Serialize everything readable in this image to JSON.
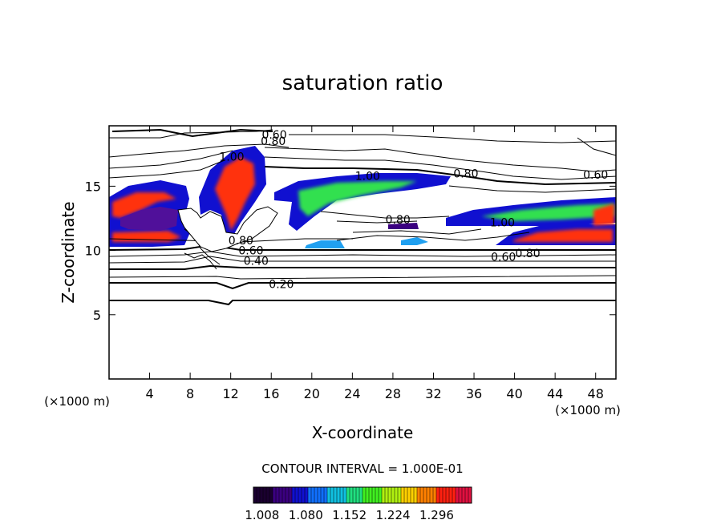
{
  "chart_data": {
    "type": "contour",
    "title": "saturation ratio",
    "xlabel": "X-coordinate",
    "ylabel": "Z-coordinate",
    "x_unit": "(×1000 m)",
    "z_unit": "(×1000 m)",
    "xlim": [
      0,
      50
    ],
    "ylim": [
      0,
      19.7
    ],
    "x_ticks": [
      4,
      8,
      12,
      16,
      20,
      24,
      28,
      32,
      36,
      40,
      44,
      48
    ],
    "y_ticks": [
      5,
      10,
      15
    ],
    "contour_interval_text": "CONTOUR INTERVAL = 1.000E-01",
    "colorbar_ticks": [
      "1.008",
      "1.080",
      "1.152",
      "1.224",
      "1.296"
    ],
    "colormap": [
      "#1a0030",
      "#3b0080",
      "#1010d0",
      "#1070ff",
      "#10c0e0",
      "#20e080",
      "#40f020",
      "#b0f010",
      "#ffd000",
      "#ff8000",
      "#ff2010",
      "#e01040"
    ],
    "contour_labels": [
      {
        "text": "0.60",
        "x": 16.3,
        "z": 19.0
      },
      {
        "text": "0.80",
        "x": 16.2,
        "z": 18.5
      },
      {
        "text": "1.00",
        "x": 12.1,
        "z": 17.3
      },
      {
        "text": "1.00",
        "x": 25.5,
        "z": 15.8
      },
      {
        "text": "0.80",
        "x": 35.2,
        "z": 16.0
      },
      {
        "text": "0.60",
        "x": 48.0,
        "z": 15.9
      },
      {
        "text": "0.80",
        "x": 28.5,
        "z": 12.4
      },
      {
        "text": "1.00",
        "x": 38.8,
        "z": 12.2
      },
      {
        "text": "0.80",
        "x": 13.0,
        "z": 10.8
      },
      {
        "text": "0.60",
        "x": 14.0,
        "z": 10.0
      },
      {
        "text": "0.40",
        "x": 14.5,
        "z": 9.2
      },
      {
        "text": "0.80",
        "x": 41.3,
        "z": 9.8
      },
      {
        "text": "0.60",
        "x": 38.9,
        "z": 9.5
      },
      {
        "text": "0.20",
        "x": 17.0,
        "z": 7.4
      }
    ]
  }
}
